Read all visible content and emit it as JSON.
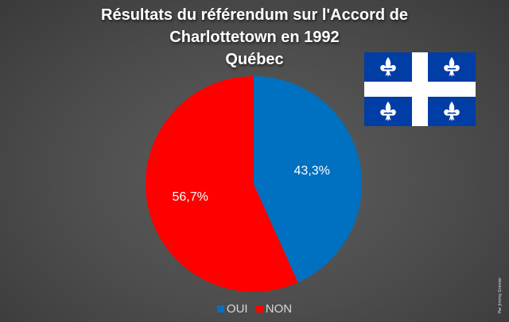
{
  "title_lines": [
    "Résultats du référendum sur l'Accord de",
    "Charlottetown en 1992"
  ],
  "subtitle": "Québec",
  "credit": "Par Jimmy Grenier",
  "flag_icon": "quebec-flag-icon",
  "colors": {
    "background": "#4c4c4c",
    "oui": "#0070c0",
    "non": "#ff0000",
    "flag_blue": "#003da5",
    "flag_white": "#ffffff"
  },
  "chart_data": {
    "type": "pie",
    "title": "Résultats du référendum sur l'Accord de Charlottetown en 1992",
    "subtitle": "Québec",
    "categories": [
      "OUI",
      "NON"
    ],
    "values": [
      43.3,
      56.7
    ],
    "data_labels": [
      "43,3%",
      "56,7%"
    ],
    "colors": [
      "#0070c0",
      "#ff0000"
    ],
    "start_angle_deg": 0,
    "direction": "clockwise",
    "legend_position": "bottom"
  }
}
